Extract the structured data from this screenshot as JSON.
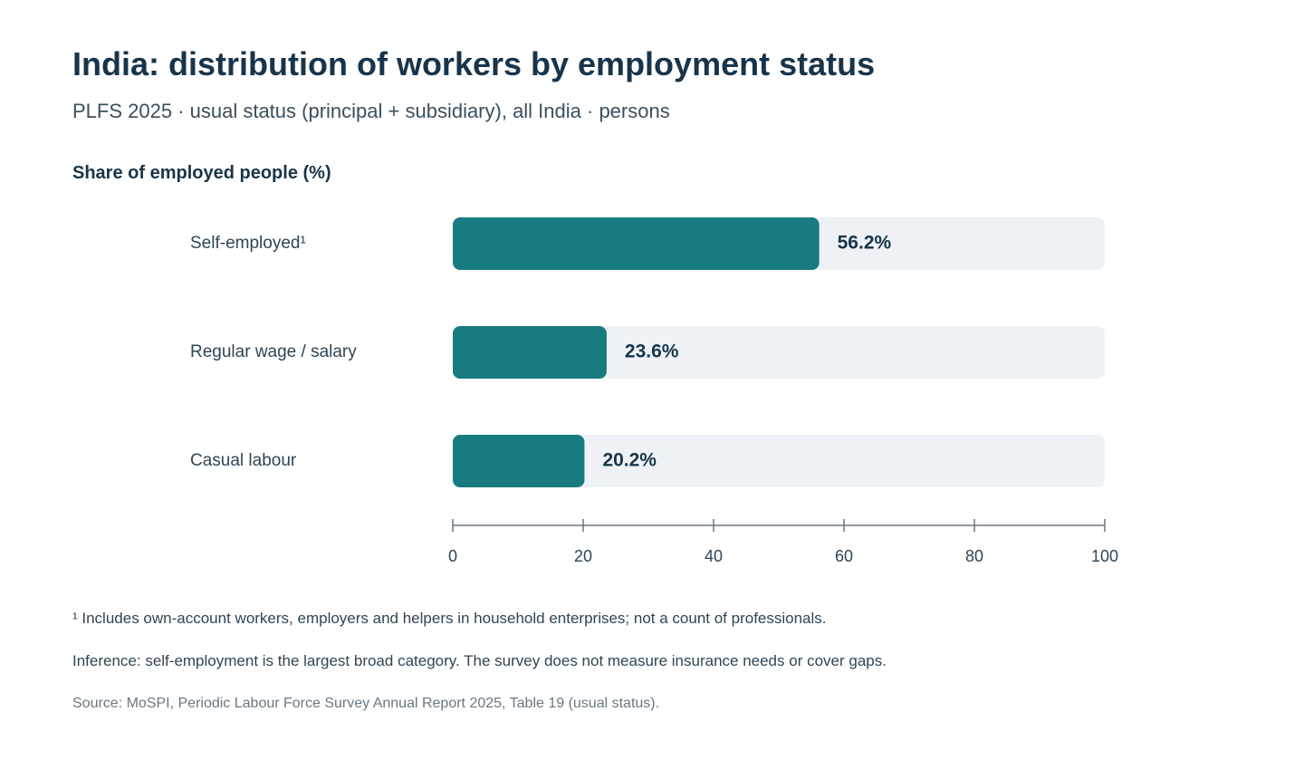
{
  "header": {
    "title": "India: distribution of workers by employment status",
    "subtitle": "PLFS 2025 · usual status (principal + subsidiary), all India · persons"
  },
  "chart_data": {
    "type": "bar",
    "orientation": "horizontal",
    "title": "Share of employed people (%)",
    "categories": [
      "Self-employed¹",
      "Regular wage / salary",
      "Casual labour"
    ],
    "values": [
      56.2,
      23.6,
      20.2
    ],
    "value_labels": [
      "56.2%",
      "23.6%",
      "20.2%"
    ],
    "xlim": [
      0,
      100
    ],
    "xticks": [
      0,
      20,
      40,
      60,
      80,
      100
    ],
    "grid": false,
    "legend": "none",
    "colors": {
      "bar": "#177b80",
      "track": "#eef2f6",
      "axis": "#6b7780"
    }
  },
  "notes": {
    "footnote": "¹ Includes own-account workers, employers and helpers in household enterprises; not a count of professionals.",
    "inference": "Inference: self-employment is the largest broad category. The survey does not measure insurance needs or cover gaps.",
    "source": "Source: MoSPI, Periodic Labour Force Survey Annual Report 2025, Table 19 (usual status)."
  }
}
